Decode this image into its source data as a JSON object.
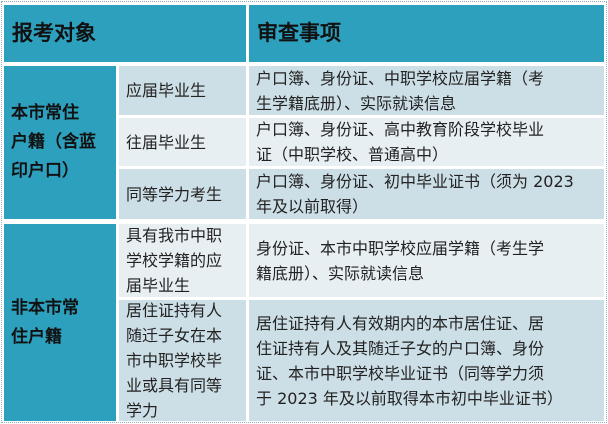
{
  "header": {
    "col1": "报考对象",
    "col2": "审查事项"
  },
  "groups": [
    {
      "category": "本市常住\n户籍（含蓝\n印户口）",
      "rows": [
        {
          "type": "应届毕业生",
          "items": "户口簿、身份证、中职学校应届学籍（考\n生学籍底册）、实际就读信息"
        },
        {
          "type": "往届毕业生",
          "items": "户口簿、身份证、高中教育阶段学校毕业\n证（中职学校、普通高中）"
        },
        {
          "type": "同等学力考生",
          "items": "户口簿、身份证、初中毕业证书（须为 2023\n年及以前取得）"
        }
      ]
    },
    {
      "category": "非本市常\n住户籍",
      "rows": [
        {
          "type": "具有我市中职\n学校学籍的应\n届毕业生",
          "items": "身份证、本市中职学校应届学籍（考生学\n籍底册）、实际就读信息"
        },
        {
          "type": "居住证持有人\n随迁子女在本\n市中职学校毕\n业或具有同等\n学力",
          "items": "居住证持有人有效期内的本市居住证、居\n住证持有人及其随迁子女的户口簿、身份\n证、本市中职学校毕业证书（同等学力须\n于 2023 年及以前取得本市初中毕业证书）"
        }
      ]
    }
  ]
}
